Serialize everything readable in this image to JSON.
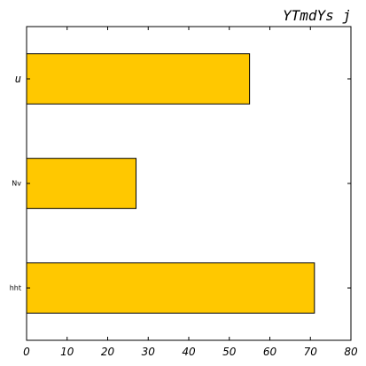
{
  "chart_data": {
    "type": "bar",
    "orientation": "horizontal",
    "title": "YTmdYs j",
    "categories": [
      "hht",
      "Nv",
      "u"
    ],
    "values": [
      71,
      27,
      55
    ],
    "xlim": [
      0,
      80
    ],
    "xticks": [
      0,
      10,
      20,
      30,
      40,
      50,
      60,
      70,
      80
    ],
    "xlabel": "",
    "ylabel": "",
    "grid": false,
    "bar_color": "#FFC800",
    "edge_color": "#000000"
  }
}
